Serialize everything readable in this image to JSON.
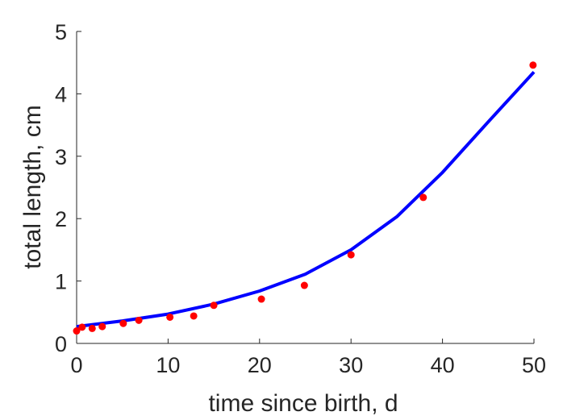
{
  "chart_data": {
    "type": "scatter",
    "title": "",
    "xlabel": "time since birth, d",
    "ylabel": "total length, cm",
    "xlim": [
      0,
      50
    ],
    "ylim": [
      0,
      5
    ],
    "xticks": [
      0,
      10,
      20,
      30,
      40,
      50
    ],
    "yticks": [
      0,
      1,
      2,
      3,
      4,
      5
    ],
    "grid": false,
    "legend": "none",
    "series": [
      {
        "type": "scatter",
        "color": "#ff0000",
        "x": [
          0.0,
          0.6,
          1.7,
          2.8,
          5.1,
          6.8,
          10.2,
          12.8,
          15.0,
          20.2,
          24.9,
          30.0,
          37.9,
          49.9
        ],
        "y": [
          0.2,
          0.26,
          0.24,
          0.27,
          0.32,
          0.37,
          0.42,
          0.44,
          0.61,
          0.71,
          0.93,
          1.42,
          2.34,
          4.46
        ]
      },
      {
        "type": "line",
        "color": "#0000ff",
        "x": [
          0,
          5,
          10,
          15,
          20,
          25,
          30,
          35,
          40,
          45,
          50
        ],
        "y": [
          0.27,
          0.36,
          0.47,
          0.63,
          0.84,
          1.11,
          1.5,
          2.03,
          2.74,
          3.55,
          4.35
        ]
      }
    ]
  }
}
